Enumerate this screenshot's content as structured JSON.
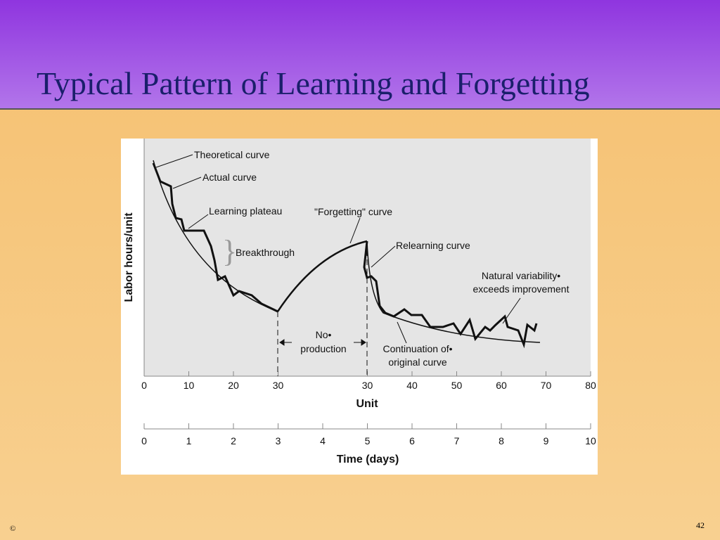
{
  "slide": {
    "title": "Typical Pattern of Learning and Forgetting",
    "copyright": "©",
    "page_number": "42"
  },
  "figure": {
    "y_axis_label": "Labor hours/unit",
    "x_axis_label": "Unit",
    "x2_axis_label": "Time (days)",
    "unit_ticks": [
      0,
      10,
      20,
      30,
      null,
      30,
      40,
      50,
      60,
      70,
      80
    ],
    "day_ticks": [
      0,
      1,
      2,
      3,
      4,
      5,
      6,
      7,
      8,
      9,
      10
    ],
    "annotations": {
      "theoretical": "Theoretical curve",
      "actual": "Actual curve",
      "plateau": "Learning plateau",
      "breakthrough": "Breakthrough",
      "forgetting": "\"Forgetting\" curve",
      "relearning": "Relearning curve",
      "variability_1": "Natural variability•",
      "variability_2": "exceeds improvement",
      "no_production_1": "No•",
      "no_production_2": "production",
      "continuation_1": "Continuation of•",
      "continuation_2": "original curve"
    }
  }
}
